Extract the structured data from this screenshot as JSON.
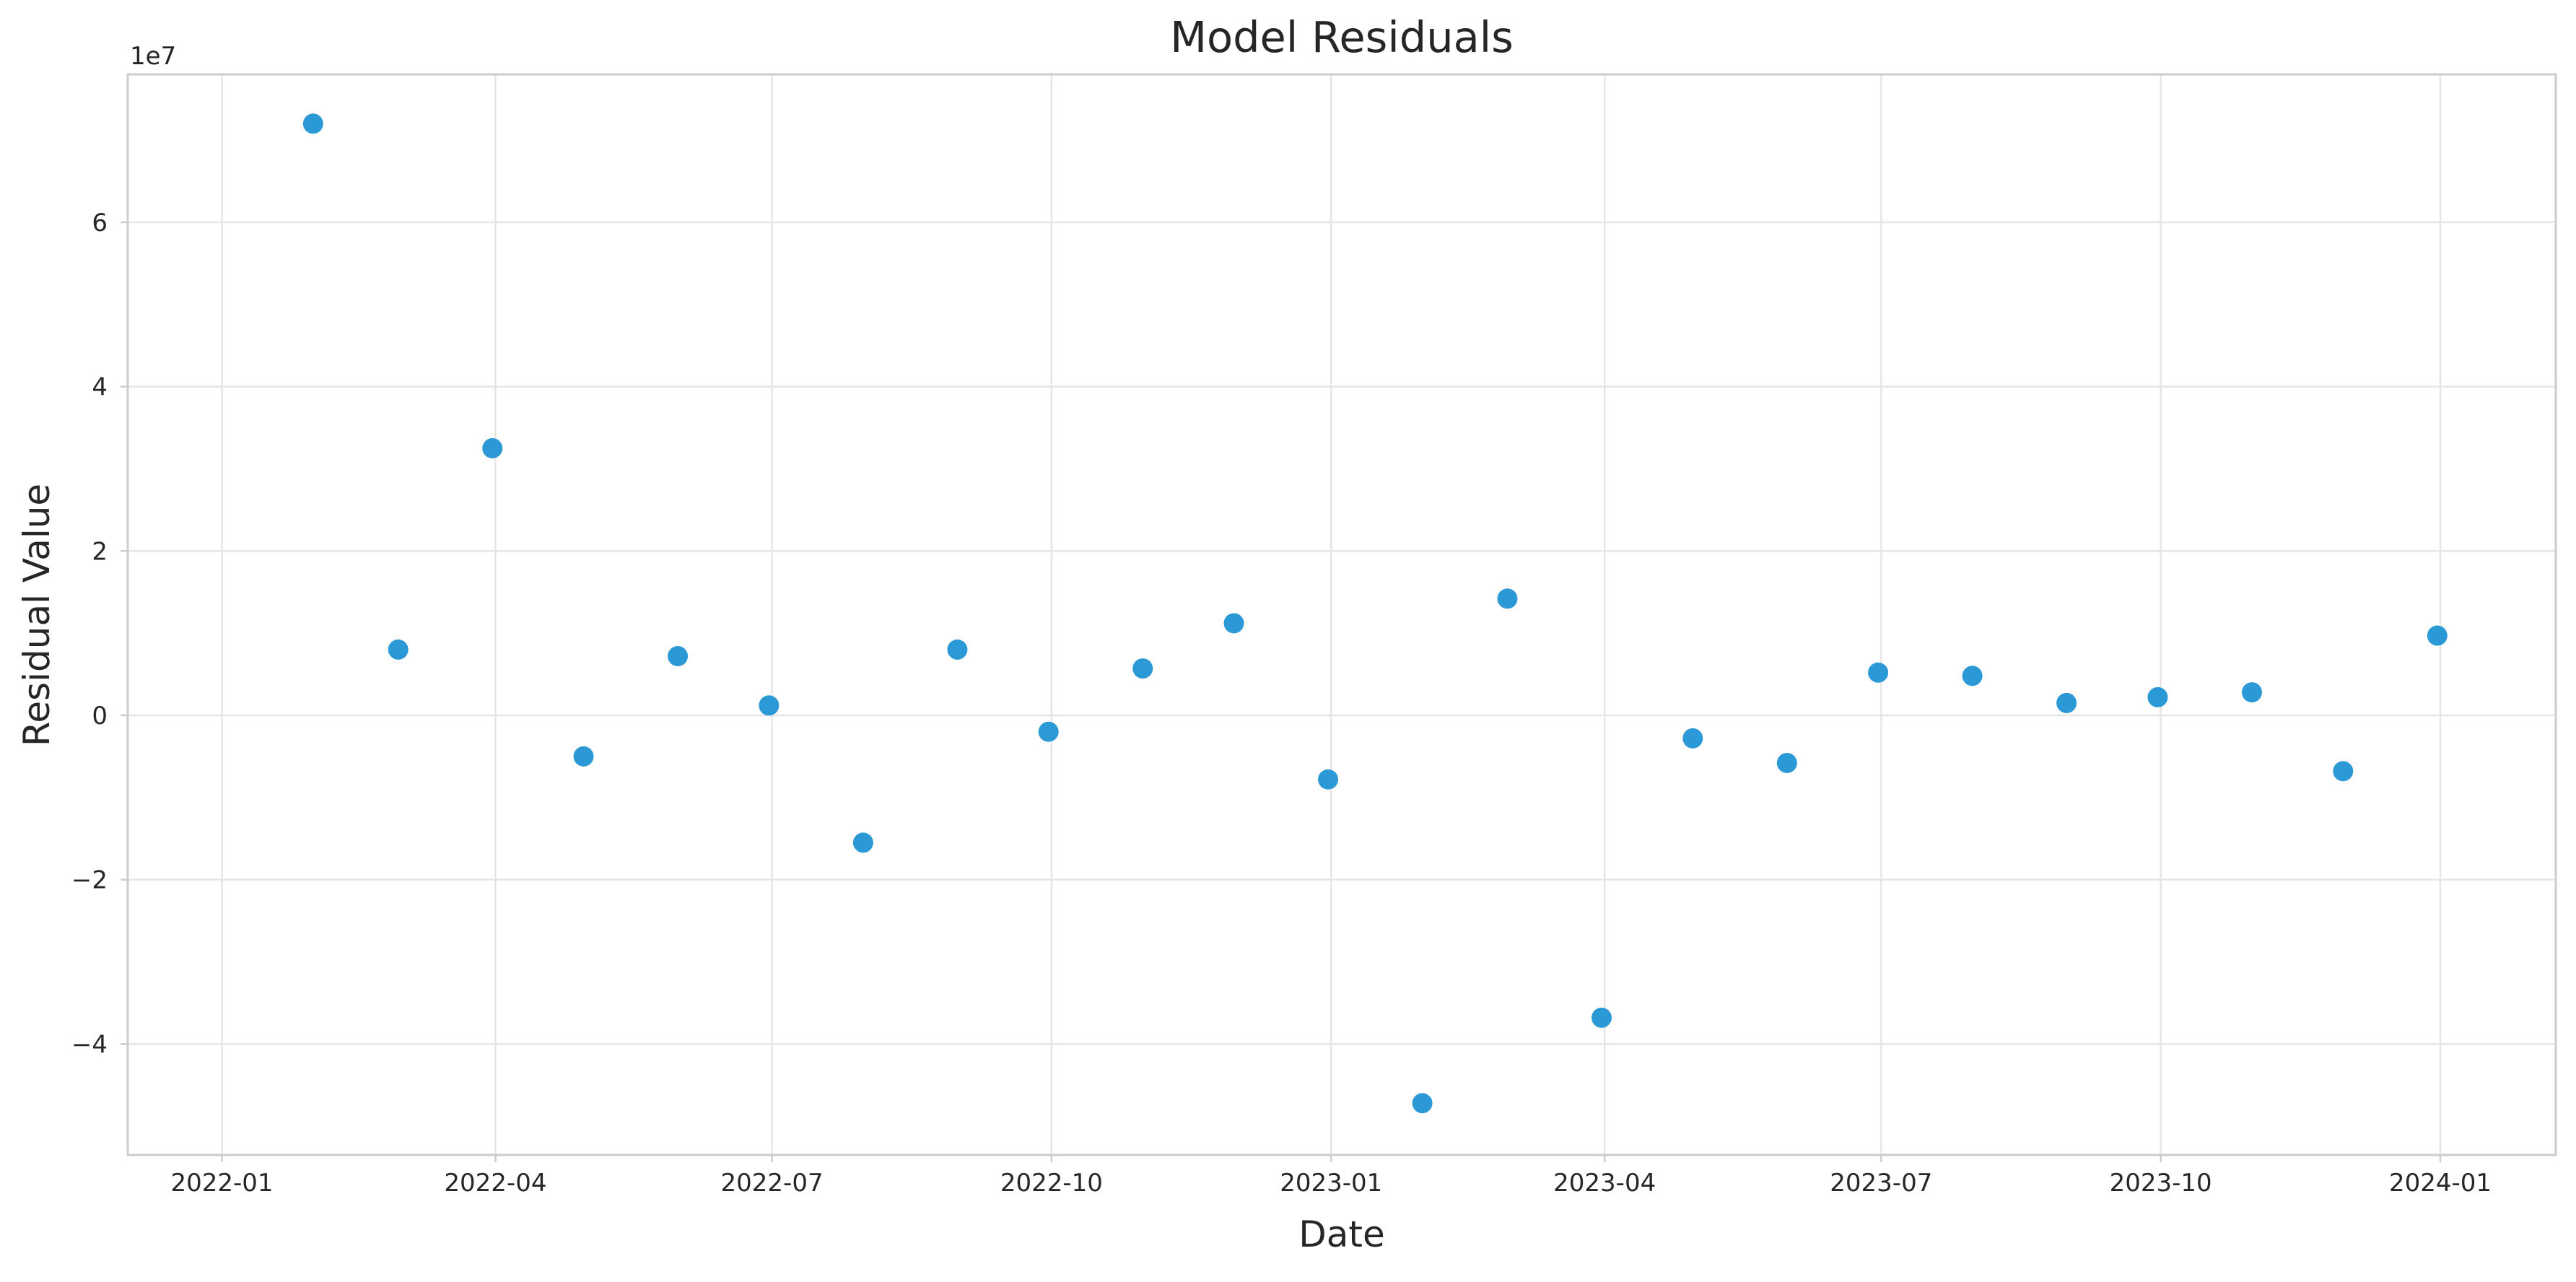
{
  "chart_data": {
    "type": "scatter",
    "title": "Model Residuals",
    "xlabel": "Date",
    "ylabel": "Residual Value",
    "y_offset_label": "1e7",
    "y_scale_factor": 10000000,
    "xlim": [
      "2021-12-01",
      "2024-02-08"
    ],
    "ylim": [
      -5.35,
      7.8
    ],
    "x_ticks": [
      {
        "value": "2022-01-01",
        "label": "2022-01"
      },
      {
        "value": "2022-04-01",
        "label": "2022-04"
      },
      {
        "value": "2022-07-01",
        "label": "2022-07"
      },
      {
        "value": "2022-10-01",
        "label": "2022-10"
      },
      {
        "value": "2023-01-01",
        "label": "2023-01"
      },
      {
        "value": "2023-04-01",
        "label": "2023-04"
      },
      {
        "value": "2023-07-01",
        "label": "2023-07"
      },
      {
        "value": "2023-10-01",
        "label": "2023-10"
      },
      {
        "value": "2024-01-01",
        "label": "2024-01"
      }
    ],
    "y_ticks": [
      {
        "value": -4,
        "label": "−4"
      },
      {
        "value": -2,
        "label": "−2"
      },
      {
        "value": 0,
        "label": "0"
      },
      {
        "value": 2,
        "label": "2"
      },
      {
        "value": 4,
        "label": "4"
      },
      {
        "value": 6,
        "label": "6"
      }
    ],
    "grid": true,
    "marker_color": "#2596d6",
    "series": [
      {
        "points": [
          {
            "x": "2022-01-31",
            "y": 7.2
          },
          {
            "x": "2022-02-28",
            "y": 0.8
          },
          {
            "x": "2022-03-31",
            "y": 3.25
          },
          {
            "x": "2022-04-30",
            "y": -0.5
          },
          {
            "x": "2022-05-31",
            "y": 0.72
          },
          {
            "x": "2022-06-30",
            "y": 0.12
          },
          {
            "x": "2022-07-31",
            "y": -1.55
          },
          {
            "x": "2022-08-31",
            "y": 0.8
          },
          {
            "x": "2022-09-30",
            "y": -0.2
          },
          {
            "x": "2022-10-31",
            "y": 0.57
          },
          {
            "x": "2022-11-30",
            "y": 1.12
          },
          {
            "x": "2022-12-31",
            "y": -0.78
          },
          {
            "x": "2023-01-31",
            "y": -4.72
          },
          {
            "x": "2023-02-28",
            "y": 1.42
          },
          {
            "x": "2023-03-31",
            "y": -3.68
          },
          {
            "x": "2023-04-30",
            "y": -0.28
          },
          {
            "x": "2023-05-31",
            "y": -0.58
          },
          {
            "x": "2023-06-30",
            "y": 0.52
          },
          {
            "x": "2023-07-31",
            "y": 0.48
          },
          {
            "x": "2023-08-31",
            "y": 0.15
          },
          {
            "x": "2023-09-30",
            "y": 0.22
          },
          {
            "x": "2023-10-31",
            "y": 0.28
          },
          {
            "x": "2023-11-30",
            "y": -0.68
          },
          {
            "x": "2023-12-31",
            "y": 0.97
          }
        ]
      }
    ]
  }
}
